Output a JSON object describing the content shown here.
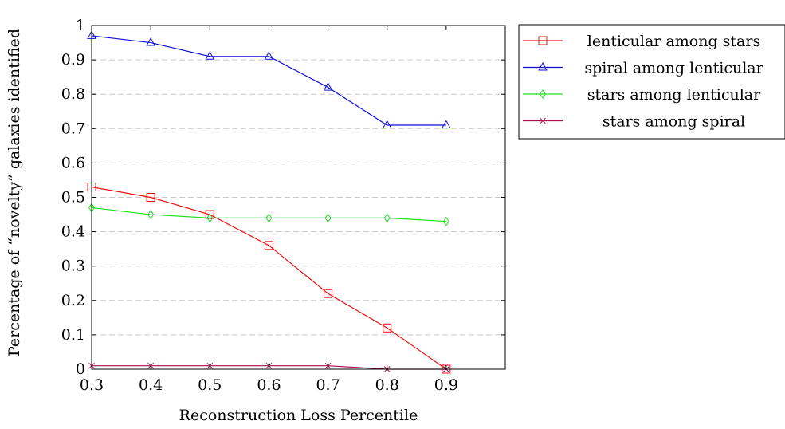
{
  "chart_data": {
    "type": "line",
    "xlabel": "Reconstruction Loss Percentile",
    "ylabel": "Percentage of “novelty” galaxies identified",
    "xlim": [
      0.3,
      1.0
    ],
    "ylim": [
      0,
      1
    ],
    "xticks": [
      0.3,
      0.4,
      0.5,
      0.6,
      0.7,
      0.8,
      0.9
    ],
    "yticks": [
      0,
      0.1,
      0.2,
      0.3,
      0.4,
      0.5,
      0.6,
      0.7,
      0.8,
      0.9,
      1
    ],
    "xtick_labels": [
      "0.3",
      "0.4",
      "0.5",
      "0.6",
      "0.7",
      "0.8",
      "0.9"
    ],
    "ytick_labels": [
      "0",
      "0.1",
      "0.2",
      "0.3",
      "0.4",
      "0.5",
      "0.6",
      "0.7",
      "0.8",
      "0.9",
      "1"
    ],
    "grid": "horizontal dashed",
    "legend_position": "outside-top-right",
    "x": [
      0.3,
      0.4,
      0.5,
      0.6,
      0.7,
      0.8,
      0.9
    ],
    "series": [
      {
        "name": "lenticular among stars",
        "color": "#e8100e",
        "marker": "square",
        "values": [
          0.53,
          0.5,
          0.45,
          0.36,
          0.22,
          0.12,
          0.0
        ]
      },
      {
        "name": "spiral among lenticular",
        "color": "#1010d8",
        "marker": "triangle",
        "values": [
          0.97,
          0.95,
          0.91,
          0.91,
          0.82,
          0.71,
          0.71
        ]
      },
      {
        "name": "stars among lenticular",
        "color": "#1ee01e",
        "marker": "diamond",
        "values": [
          0.47,
          0.45,
          0.44,
          0.44,
          0.44,
          0.44,
          0.43
        ]
      },
      {
        "name": "stars among spiral",
        "color": "#a8104e",
        "marker": "cross",
        "values": [
          0.01,
          0.01,
          0.01,
          0.01,
          0.01,
          0.0,
          0.0
        ]
      }
    ]
  }
}
